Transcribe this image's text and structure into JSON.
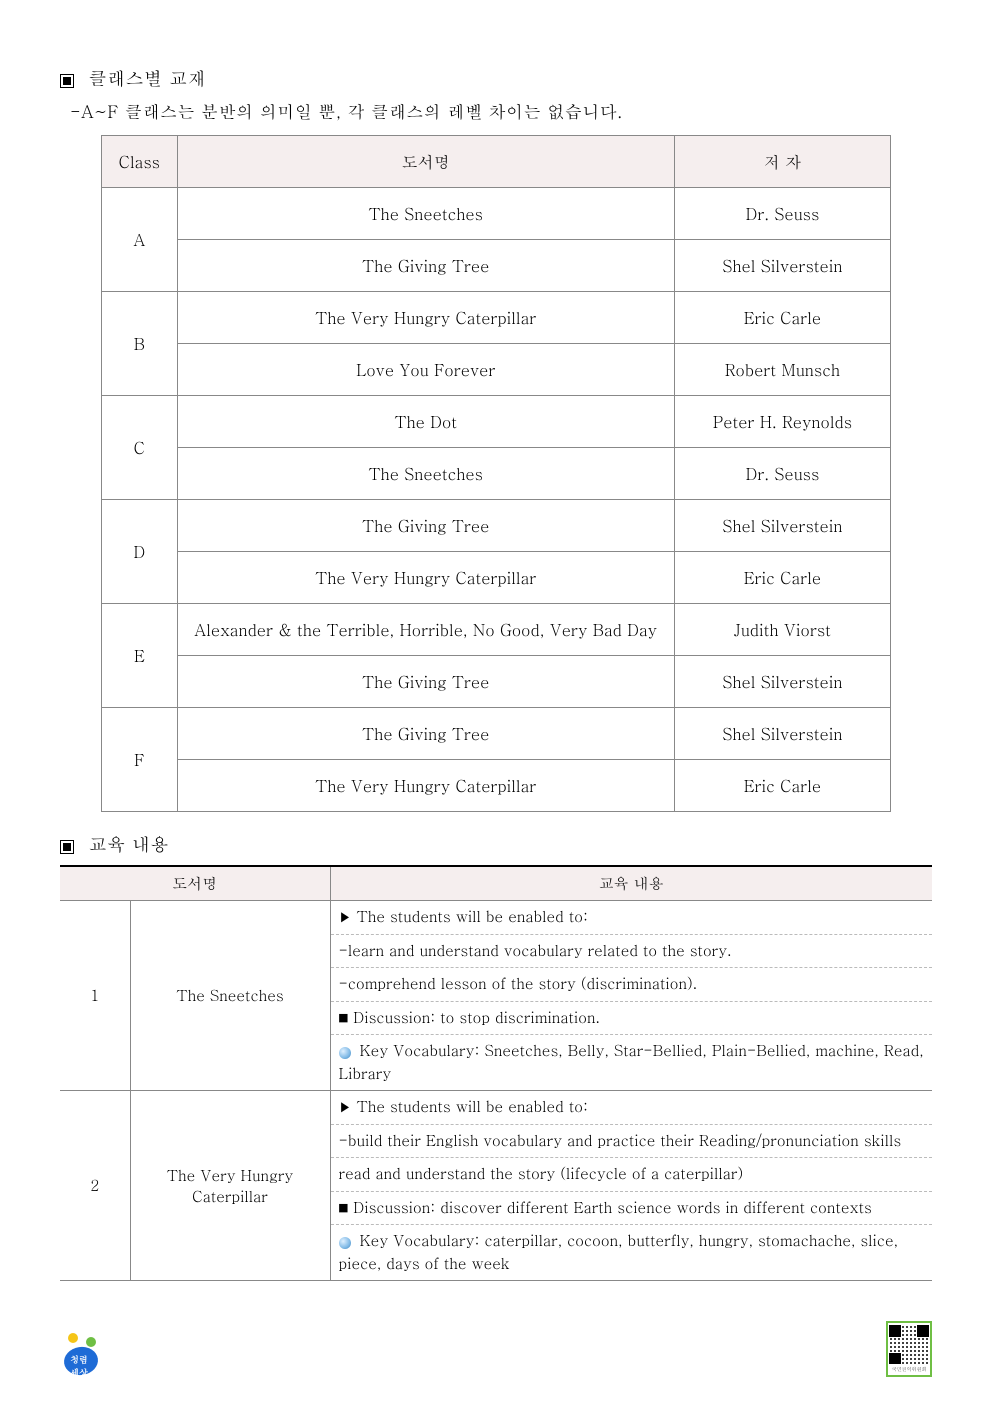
{
  "section1": {
    "title": "클래스별 교재",
    "subnote": "-A~F 클래스는 분반의 의미일 뿐, 각 클래스의 레벨 차이는 없습니다."
  },
  "table1": {
    "headers": {
      "class": "Class",
      "book": "도서명",
      "author": "저 자"
    },
    "groups": [
      {
        "class": "A",
        "rows": [
          {
            "book": "The Sneetches",
            "author": "Dr. Seuss"
          },
          {
            "book": "The Giving Tree",
            "author": "Shel Silverstein"
          }
        ]
      },
      {
        "class": "B",
        "rows": [
          {
            "book": "The Very Hungry Caterpillar",
            "author": "Eric Carle"
          },
          {
            "book": "Love You Forever",
            "author": "Robert Munsch"
          }
        ]
      },
      {
        "class": "C",
        "rows": [
          {
            "book": "The Dot",
            "author": "Peter H. Reynolds"
          },
          {
            "book": "The Sneetches",
            "author": "Dr. Seuss"
          }
        ]
      },
      {
        "class": "D",
        "rows": [
          {
            "book": "The Giving Tree",
            "author": "Shel Silverstein"
          },
          {
            "book": "The Very Hungry Caterpillar",
            "author": "Eric Carle"
          }
        ]
      },
      {
        "class": "E",
        "rows": [
          {
            "book": "Alexander & the Terrible, Horrible, No Good, Very Bad Day",
            "author": "Judith Viorst"
          },
          {
            "book": "The Giving Tree",
            "author": "Shel Silverstein"
          }
        ]
      },
      {
        "class": "F",
        "rows": [
          {
            "book": "The Giving Tree",
            "author": "Shel Silverstein"
          },
          {
            "book": "The Very Hungry Caterpillar",
            "author": "Eric Carle"
          }
        ]
      }
    ]
  },
  "section2": {
    "title": "교육 내용"
  },
  "table2": {
    "headers": {
      "book": "도서명",
      "content": "교육 내용"
    },
    "rows": [
      {
        "num": "1",
        "book": "The Sneetches",
        "lines": [
          {
            "type": "tri",
            "text": "The students will be enabled to:"
          },
          {
            "type": "plain",
            "text": "-learn and understand vocabulary related to the story."
          },
          {
            "type": "plain",
            "text": "-comprehend lesson of the story (discrimination)."
          },
          {
            "type": "sq",
            "text": "Discussion: to stop discrimination."
          },
          {
            "type": "dot",
            "text": "Key Vocabulary: Sneetches, Belly, Star-Bellied, Plain-Bellied, machine, Read, Library"
          }
        ]
      },
      {
        "num": "2",
        "book": "The Very Hungry Caterpillar",
        "lines": [
          {
            "type": "tri",
            "text": "The students will be enabled to:"
          },
          {
            "type": "justify",
            "text": "-build   their   English   vocabulary   and   practice   their Reading/pronunciation skills"
          },
          {
            "type": "plain",
            "text": "read and understand the story (lifecycle of a caterpillar)"
          },
          {
            "type": "sq",
            "text": "Discussion: discover different Earth science words in different contexts"
          },
          {
            "type": "dotj",
            "text": "Key  Vocabulary:  caterpillar,  cocoon,  butterfly,  hungry, stomachache, slice, piece, days of the week"
          }
        ]
      }
    ]
  },
  "footer": {
    "logo_text": "청렴\n세상",
    "qr_label": "국민권익위원회"
  },
  "colors": {
    "header_bg": "#f5eeee",
    "border": "#888888",
    "dash": "#bbbbbb",
    "text": "#000000"
  }
}
